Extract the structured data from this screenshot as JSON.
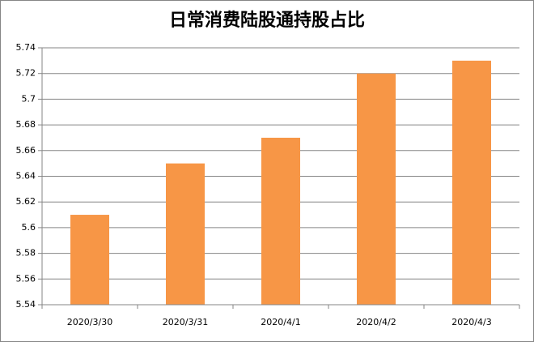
{
  "chart_data": {
    "type": "bar",
    "title": "日常消费陆股通持股占比",
    "categories": [
      "2020/3/30",
      "2020/3/31",
      "2020/4/1",
      "2020/4/2",
      "2020/4/3"
    ],
    "values": [
      5.61,
      5.65,
      5.67,
      5.72,
      5.73
    ],
    "color": "#f79646",
    "ylim": [
      5.54,
      5.74
    ],
    "yticks": [
      5.54,
      5.56,
      5.58,
      5.6,
      5.62,
      5.64,
      5.66,
      5.68,
      5.7,
      5.72,
      5.74
    ],
    "grid": true
  }
}
